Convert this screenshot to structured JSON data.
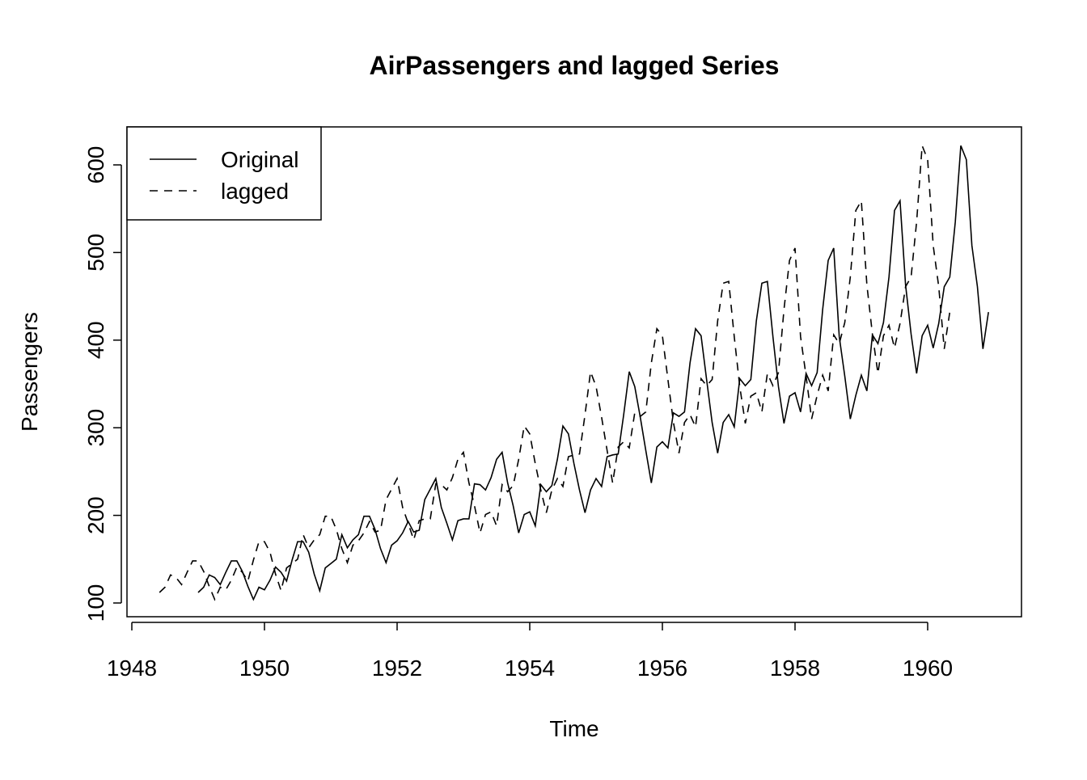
{
  "chart_data": {
    "type": "line",
    "title": "AirPassengers and lagged Series",
    "xlabel": "Time",
    "ylabel": "Passengers",
    "xlim": [
      1948.42,
      1960.92
    ],
    "ylim": [
      100,
      622
    ],
    "xticks": [
      "1948",
      "1950",
      "1952",
      "1954",
      "1956",
      "1958",
      "1960"
    ],
    "yticks": [
      "100",
      "200",
      "300",
      "400",
      "500",
      "600"
    ],
    "grid": false,
    "legend_position": "top-left",
    "series": [
      {
        "name": "Original",
        "style": "solid",
        "start": 1949.0,
        "frequency": 12,
        "values": [
          112,
          118,
          132,
          129,
          121,
          135,
          148,
          148,
          136,
          119,
          104,
          118,
          115,
          126,
          141,
          135,
          125,
          149,
          170,
          170,
          158,
          133,
          114,
          140,
          145,
          150,
          178,
          163,
          172,
          178,
          199,
          199,
          184,
          162,
          146,
          166,
          171,
          180,
          193,
          181,
          183,
          218,
          230,
          242,
          209,
          191,
          172,
          194,
          196,
          196,
          236,
          235,
          229,
          243,
          264,
          272,
          237,
          211,
          180,
          201,
          204,
          188,
          235,
          227,
          234,
          264,
          302,
          293,
          259,
          229,
          203,
          229,
          242,
          233,
          267,
          269,
          270,
          315,
          364,
          347,
          312,
          274,
          237,
          278,
          284,
          277,
          317,
          313,
          318,
          374,
          413,
          405,
          355,
          306,
          271,
          306,
          315,
          301,
          356,
          348,
          355,
          422,
          465,
          467,
          404,
          347,
          305,
          336,
          340,
          318,
          362,
          348,
          363,
          435,
          491,
          505,
          404,
          359,
          310,
          337,
          360,
          342,
          406,
          396,
          420,
          472,
          548,
          559,
          463,
          407,
          362,
          405,
          417,
          391,
          419,
          461,
          472,
          535,
          622,
          606,
          508,
          461,
          390,
          432
        ]
      },
      {
        "name": "lagged",
        "style": "dashed",
        "start": 1948.4167,
        "frequency": 12,
        "same_values_as": "Original"
      }
    ]
  }
}
